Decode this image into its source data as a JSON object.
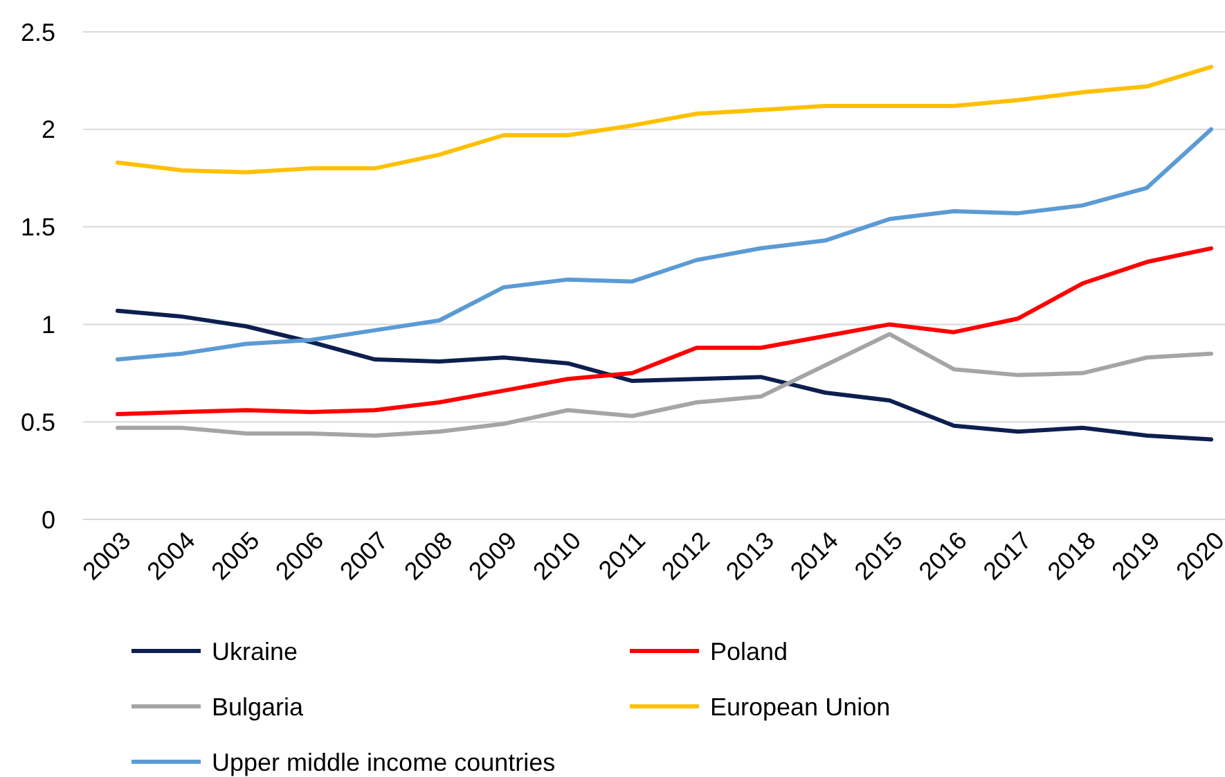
{
  "chart_data": {
    "type": "line",
    "categories": [
      "2003",
      "2004",
      "2005",
      "2006",
      "2007",
      "2008",
      "2009",
      "2010",
      "2011",
      "2012",
      "2013",
      "2014",
      "2015",
      "2016",
      "2017",
      "2018",
      "2019",
      "2020"
    ],
    "series": [
      {
        "name": "Ukraine",
        "color": "#0d1f4f",
        "values": [
          1.07,
          1.04,
          0.99,
          0.91,
          0.82,
          0.81,
          0.83,
          0.8,
          0.71,
          0.72,
          0.73,
          0.65,
          0.61,
          0.48,
          0.45,
          0.47,
          0.43,
          0.41
        ]
      },
      {
        "name": "Poland",
        "color": "#ff0000",
        "values": [
          0.54,
          0.55,
          0.56,
          0.55,
          0.56,
          0.6,
          0.66,
          0.72,
          0.75,
          0.88,
          0.88,
          0.94,
          1.0,
          0.96,
          1.03,
          1.21,
          1.32,
          1.39
        ]
      },
      {
        "name": "Bulgaria",
        "color": "#a5a5a5",
        "values": [
          0.47,
          0.47,
          0.44,
          0.44,
          0.43,
          0.45,
          0.49,
          0.56,
          0.53,
          0.6,
          0.63,
          0.79,
          0.95,
          0.77,
          0.74,
          0.75,
          0.83,
          0.85
        ]
      },
      {
        "name": "European Union",
        "color": "#ffc000",
        "values": [
          1.83,
          1.79,
          1.78,
          1.8,
          1.8,
          1.87,
          1.97,
          1.97,
          2.02,
          2.08,
          2.1,
          2.12,
          2.12,
          2.12,
          2.15,
          2.19,
          2.22,
          2.32
        ]
      },
      {
        "name": "Upper middle income countries",
        "color": "#5b9bd5",
        "values": [
          0.82,
          0.85,
          0.9,
          0.92,
          0.97,
          1.02,
          1.19,
          1.23,
          1.22,
          1.33,
          1.39,
          1.43,
          1.54,
          1.58,
          1.57,
          1.61,
          1.7,
          2.0
        ]
      }
    ],
    "ylim": [
      0,
      2.5
    ],
    "yticks": [
      0,
      0.5,
      1,
      1.5,
      2,
      2.5
    ],
    "grid": "y",
    "legend": "bottom",
    "marker": "none",
    "line_style": "solid"
  }
}
